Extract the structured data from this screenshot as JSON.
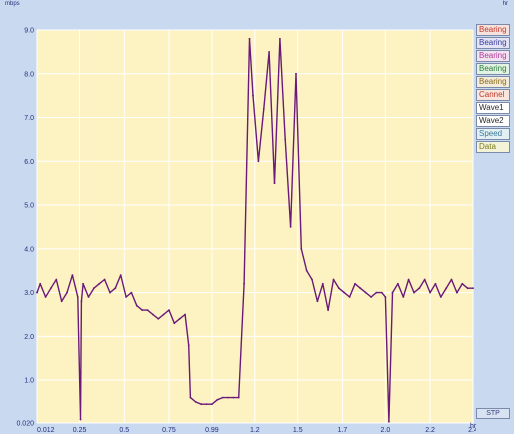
{
  "unit_label": "mbps",
  "corner_label": "hr",
  "axis_unit": "hr",
  "status_button": "STP",
  "colors": {
    "plot_bg": "#fdf2c2",
    "grid": "#ffffff",
    "line": "#6a1a78",
    "axis_text": "#2a2a7a",
    "panel_bg": "#c9daf0"
  },
  "legend": [
    {
      "label": "Bearing",
      "color": "#c0392b",
      "bg": "#f7e3dd"
    },
    {
      "label": "Bearing",
      "color": "#3a3a9a",
      "bg": "#e3e3f5"
    },
    {
      "label": "Bearing",
      "color": "#b03a9a",
      "bg": "#f3e3f0"
    },
    {
      "label": "Bearing",
      "color": "#2a7a3a",
      "bg": "#e3f3e3"
    },
    {
      "label": "Bearing",
      "color": "#8a6a1a",
      "bg": "#f3ecd8"
    },
    {
      "label": "Cannel",
      "color": "#c0392b",
      "bg": "#fbe6dd"
    },
    {
      "label": "Wave1",
      "color": "#2a2a2a",
      "bg": "#ffffff"
    },
    {
      "label": "Wave2",
      "color": "#2a2a2a",
      "bg": "#ffffff"
    },
    {
      "label": "Speed",
      "color": "#3a7a9a",
      "bg": "#e3f0f3"
    },
    {
      "label": "Data",
      "color": "#7a7a1a",
      "bg": "#f3f3d8"
    }
  ],
  "chart_data": {
    "type": "line",
    "ylim": [
      0.02,
      9.0
    ],
    "xlim": [
      0.012,
      3.4
    ],
    "y_ticks": [
      "9.0",
      "8.0",
      "7.0",
      "6.0",
      "5.0",
      "4.0",
      "3.0",
      "2.0",
      "1.0",
      "0.020"
    ],
    "y_tick_values": [
      9.0,
      8.0,
      7.0,
      6.0,
      5.0,
      4.0,
      3.0,
      2.0,
      1.0,
      0.02
    ],
    "x_ticks": [
      "0.012",
      "0.25",
      "0.5",
      "0.75",
      "0.99",
      "1.2",
      "1.5",
      "1.7",
      "2.0",
      "2.2",
      "2.4"
    ],
    "x_tick_values": [
      0.012,
      0.25,
      0.5,
      0.75,
      0.99,
      1.23,
      1.47,
      1.72,
      1.96,
      2.21,
      2.45
    ],
    "grid": true,
    "legend_position": "right",
    "series": [
      {
        "x": [
          0.012,
          0.03,
          0.06,
          0.09,
          0.12,
          0.15,
          0.18,
          0.21,
          0.24,
          0.255,
          0.26,
          0.27,
          0.3,
          0.33,
          0.36,
          0.39,
          0.42,
          0.45,
          0.48,
          0.51,
          0.54,
          0.57,
          0.6,
          0.63,
          0.66,
          0.69,
          0.72,
          0.75,
          0.78,
          0.81,
          0.84,
          0.86,
          0.87,
          0.9,
          0.93,
          0.96,
          0.99,
          1.02,
          1.05,
          1.08,
          1.11,
          1.14,
          1.17,
          1.2,
          1.22,
          1.25,
          1.28,
          1.31,
          1.34,
          1.37,
          1.4,
          1.43,
          1.46,
          1.49,
          1.52,
          1.55,
          1.58,
          1.61,
          1.64,
          1.67,
          1.7,
          1.73,
          1.76,
          1.79,
          1.82,
          1.85,
          1.88,
          1.91,
          1.94,
          1.96,
          1.98,
          2.0,
          2.03,
          2.06,
          2.09,
          2.12,
          2.15,
          2.18,
          2.21,
          2.24,
          2.27,
          2.3,
          2.33,
          2.36,
          2.39,
          2.42,
          2.45
        ],
        "y": [
          3.0,
          3.2,
          2.9,
          3.1,
          3.3,
          2.8,
          3.0,
          3.4,
          2.9,
          0.1,
          2.8,
          3.2,
          2.9,
          3.1,
          3.2,
          3.3,
          3.0,
          3.1,
          3.4,
          2.9,
          3.0,
          2.7,
          2.6,
          2.6,
          2.5,
          2.4,
          2.5,
          2.6,
          2.3,
          2.4,
          2.5,
          1.8,
          0.6,
          0.5,
          0.45,
          0.45,
          0.45,
          0.55,
          0.6,
          0.6,
          0.6,
          0.6,
          3.2,
          8.8,
          7.5,
          6.0,
          7.2,
          8.5,
          5.5,
          8.8,
          6.5,
          4.5,
          8.0,
          4.0,
          3.5,
          3.3,
          2.8,
          3.2,
          2.6,
          3.3,
          3.1,
          3.0,
          2.9,
          3.2,
          3.1,
          3.0,
          2.9,
          3.0,
          3.0,
          2.9,
          0.05,
          3.0,
          3.2,
          2.9,
          3.3,
          3.0,
          3.1,
          3.3,
          3.0,
          3.2,
          2.9,
          3.1,
          3.3,
          3.0,
          3.2,
          3.1,
          3.1
        ]
      }
    ]
  }
}
